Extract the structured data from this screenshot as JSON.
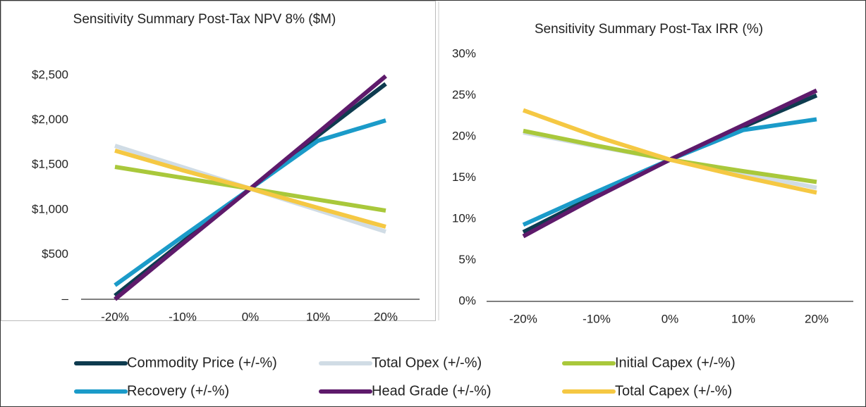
{
  "chart_data": [
    {
      "type": "line",
      "title": "Sensitivity Summary Post-Tax NPV 8% ($M)",
      "categories": [
        "-20%",
        "-10%",
        "0%",
        "10%",
        "20%"
      ],
      "ylim": [
        0,
        2500
      ],
      "yticks": [
        {
          "value": 0,
          "label": "–"
        },
        {
          "value": 500,
          "label": "$500"
        },
        {
          "value": 1000,
          "label": "$1,000"
        },
        {
          "value": 1500,
          "label": "$1,500"
        },
        {
          "value": 2000,
          "label": "$2,000"
        },
        {
          "value": 2500,
          "label": "$2,500"
        }
      ],
      "legend": "bottom",
      "series": [
        {
          "name": "Commodity Price (+/-%)",
          "color": "#0e3b4f",
          "values": [
            40,
            640,
            1235,
            1830,
            2405
          ]
        },
        {
          "name": "Total Opex (+/-%)",
          "color": "#d0dce5",
          "values": [
            1714,
            1475,
            1235,
            995,
            755
          ]
        },
        {
          "name": "Initial Capex (+/-%)",
          "color": "#a9c83b",
          "values": [
            1478,
            1356,
            1235,
            1112,
            990
          ]
        },
        {
          "name": "Recovery (+/-%)",
          "color": "#1b9bc9",
          "values": [
            157,
            700,
            1235,
            1770,
            1997
          ]
        },
        {
          "name": "Head Grade (+/-%)",
          "color": "#5e1a6b",
          "values": [
            0,
            620,
            1235,
            1860,
            2492
          ]
        },
        {
          "name": "Total Capex (+/-%)",
          "color": "#f5c843",
          "values": [
            1660,
            1440,
            1235,
            1020,
            810
          ]
        }
      ]
    },
    {
      "type": "line",
      "title": "Sensitivity Summary Post-Tax IRR (%)",
      "categories": [
        "-20%",
        "-10%",
        "0%",
        "10%",
        "20%"
      ],
      "ylim": [
        0,
        30
      ],
      "yticks": [
        {
          "value": 0,
          "label": "0%"
        },
        {
          "value": 5,
          "label": "5%"
        },
        {
          "value": 10,
          "label": "10%"
        },
        {
          "value": 15,
          "label": "15%"
        },
        {
          "value": 20,
          "label": "20%"
        },
        {
          "value": 25,
          "label": "25%"
        },
        {
          "value": 30,
          "label": "30%"
        }
      ],
      "series": [
        {
          "values": [
            8.4,
            12.9,
            17.2,
            21.2,
            25.0
          ]
        },
        {
          "values": [
            20.5,
            18.8,
            17.2,
            15.5,
            13.8
          ]
        },
        {
          "values": [
            20.7,
            18.9,
            17.2,
            15.8,
            14.5
          ]
        },
        {
          "values": [
            9.3,
            13.3,
            17.2,
            20.8,
            22.1
          ]
        },
        {
          "values": [
            7.9,
            12.7,
            17.2,
            21.4,
            25.6
          ]
        },
        {
          "values": [
            23.2,
            20.0,
            17.2,
            15.1,
            13.2
          ]
        }
      ]
    }
  ]
}
